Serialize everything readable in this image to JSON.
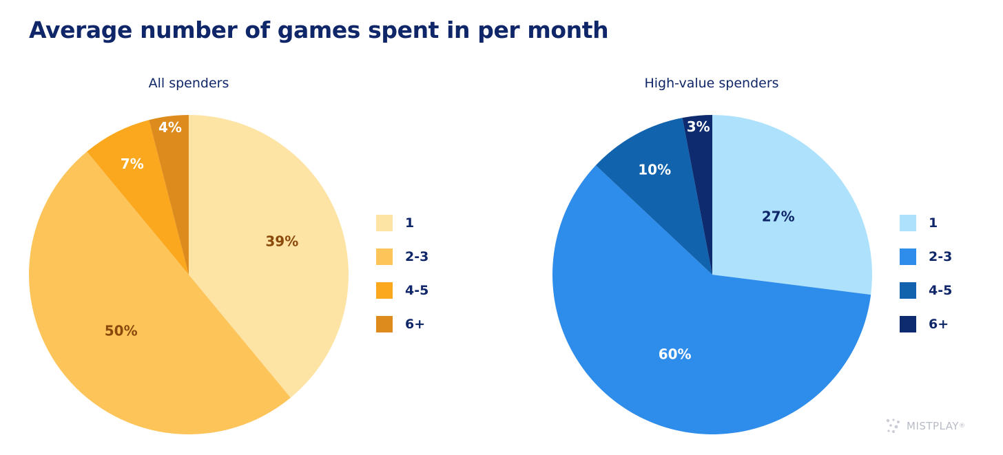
{
  "title": "Average number of games spent in per month",
  "chart_data": [
    {
      "type": "pie",
      "title": "All spenders",
      "categories": [
        "1",
        "2-3",
        "4-5",
        "6+"
      ],
      "values": [
        39,
        50,
        7,
        4
      ],
      "labels": [
        "39%",
        "50%",
        "7%",
        "4%"
      ],
      "colors": [
        "#fde4a5",
        "#fdc459",
        "#fba81f",
        "#dd8b1c"
      ],
      "label_colors": [
        "#8b4a0c",
        "#8b4a0c",
        "#ffffff",
        "#ffffff"
      ],
      "legend_position": "right"
    },
    {
      "type": "pie",
      "title": "High-value spenders",
      "categories": [
        "1",
        "2-3",
        "4-5",
        "6+"
      ],
      "values": [
        27,
        60,
        10,
        3
      ],
      "labels": [
        "27%",
        "60%",
        "10%",
        "3%"
      ],
      "colors": [
        "#ade1fc",
        "#2e8cea",
        "#1163ae",
        "#0d2b6e"
      ],
      "label_colors": [
        "#0f2668",
        "#ffffff",
        "#ffffff",
        "#ffffff"
      ],
      "legend_position": "right"
    }
  ],
  "branding": {
    "logo_text": "MISTPLAY",
    "registered_mark": "®"
  }
}
